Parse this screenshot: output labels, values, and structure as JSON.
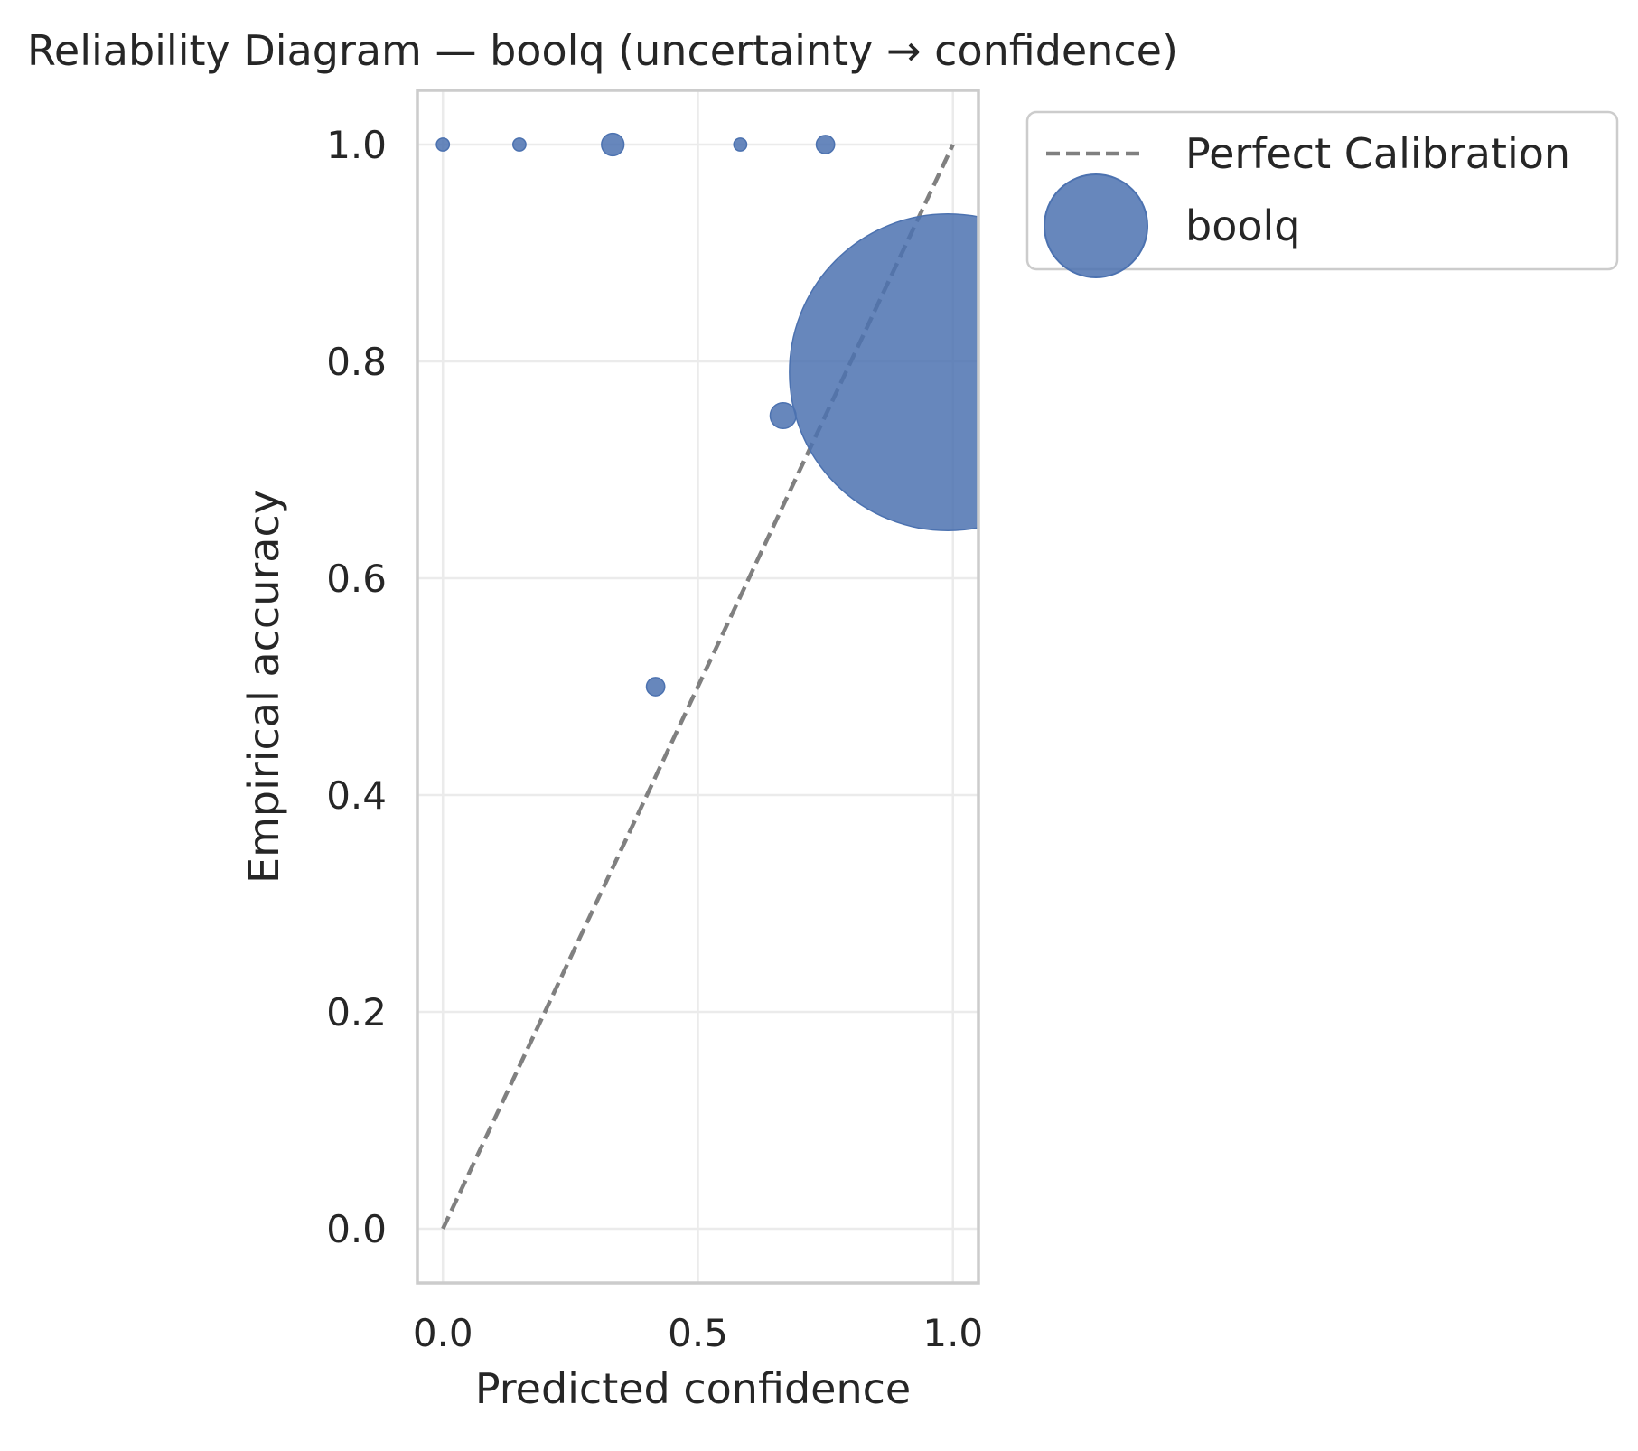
{
  "chart_data": {
    "type": "scatter",
    "title": "Reliability Diagram — boolq (uncertainty → confidence)",
    "xlabel": "Predicted confidence",
    "ylabel": "Empirical accuracy",
    "xlim": [
      -0.05,
      1.05
    ],
    "ylim": [
      -0.05,
      1.05
    ],
    "xticks": [
      0.0,
      0.5,
      1.0
    ],
    "xtick_labels": [
      "0.0",
      "0.5",
      "1.0"
    ],
    "yticks": [
      0.0,
      0.2,
      0.4,
      0.6,
      0.8,
      1.0
    ],
    "ytick_labels": [
      "0.0",
      "0.2",
      "0.4",
      "0.6",
      "0.8",
      "1.0"
    ],
    "grid": true,
    "legend_position": "outside-top-right",
    "reference_line": {
      "name": "Perfect Calibration",
      "style": "dashed",
      "color": "#808080",
      "x": [
        0.0,
        1.0
      ],
      "y": [
        0.0,
        1.0
      ]
    },
    "series": [
      {
        "name": "boolq",
        "color": "#4c72b0",
        "points": [
          {
            "x": 0.0,
            "y": 1.0,
            "count": 1
          },
          {
            "x": 0.15,
            "y": 1.0,
            "count": 1
          },
          {
            "x": 0.333,
            "y": 1.0,
            "count": 3
          },
          {
            "x": 0.417,
            "y": 0.5,
            "count": 2
          },
          {
            "x": 0.583,
            "y": 1.0,
            "count": 1
          },
          {
            "x": 0.667,
            "y": 0.75,
            "count": 4
          },
          {
            "x": 0.75,
            "y": 1.0,
            "count": 2
          },
          {
            "x": 0.99,
            "y": 0.79,
            "count": 600
          }
        ]
      }
    ]
  }
}
